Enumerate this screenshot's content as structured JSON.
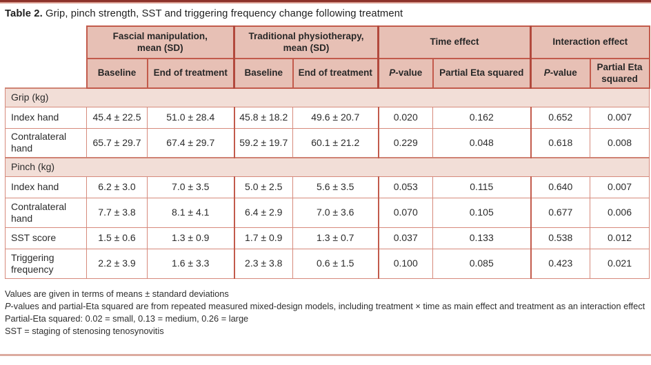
{
  "title": {
    "prefix": "Table 2.",
    "text": " Grip, pinch strength, SST and triggering frequency change following treatment"
  },
  "header": {
    "groups": [
      {
        "line1": "Fascial manipulation,",
        "line2": "mean (SD)"
      },
      {
        "line1": "Traditional physiotherapy,",
        "line2": "mean (SD)"
      },
      {
        "label": "Time effect"
      },
      {
        "label": "Interaction effect"
      }
    ],
    "sub": {
      "baseline": "Baseline",
      "end_of_treatment": "End of treatment",
      "p_italic": "P",
      "p_rest": "-value",
      "partial_eta": "Partial Eta squared"
    }
  },
  "sections": [
    {
      "name": "Grip (kg)",
      "rows": [
        {
          "label": "Index hand",
          "values": [
            "45.4 ± 22.5",
            "51.0 ± 28.4",
            "45.8 ± 18.2",
            "49.6 ± 20.7",
            "0.020",
            "0.162",
            "0.652",
            "0.007"
          ]
        },
        {
          "label": "Contralateral hand",
          "values": [
            "65.7 ± 29.7",
            "67.4 ± 29.7",
            "59.2 ± 19.7",
            "60.1 ± 21.2",
            "0.229",
            "0.048",
            "0.618",
            "0.008"
          ]
        }
      ]
    },
    {
      "name": "Pinch (kg)",
      "rows": [
        {
          "label": "Index hand",
          "values": [
            "6.2 ± 3.0",
            "7.0 ± 3.5",
            "5.0 ± 2.5",
            "5.6 ± 3.5",
            "0.053",
            "0.115",
            "0.640",
            "0.007"
          ]
        },
        {
          "label": "Contralateral hand",
          "values": [
            "7.7 ± 3.8",
            "8.1 ± 4.1",
            "6.4 ± 2.9",
            "7.0 ± 3.6",
            "0.070",
            "0.105",
            "0.677",
            "0.006"
          ]
        },
        {
          "label": "SST score",
          "values": [
            "1.5 ± 0.6",
            "1.3 ± 0.9",
            "1.7 ± 0.9",
            "1.3 ± 0.7",
            "0.037",
            "0.133",
            "0.538",
            "0.012"
          ]
        },
        {
          "label": "Triggering frequency",
          "values": [
            "2.2 ± 3.9",
            "1.6 ± 3.3",
            "2.3 ± 3.8",
            "0.6 ± 1.5",
            "0.100",
            "0.085",
            "0.423",
            "0.021"
          ]
        }
      ]
    }
  ],
  "footnotes": [
    {
      "text": "Values are given in terms of means ± standard deviations"
    },
    {
      "italic_prefix": "P",
      "text": "-values and partial-Eta squared are from repeated measured mixed-design models, including treatment × time as main effect and treatment as an interaction effect"
    },
    {
      "text": "Partial-Eta squared: 0.02 = small, 0.13 = medium, 0.26 = large"
    },
    {
      "text": "SST = staging of stenosing tenosynovitis"
    }
  ],
  "colors": {
    "header_fill": "#e7c0b5",
    "section_band_fill": "#f2ded7",
    "grid_line": "#d6897b",
    "group_divider": "#c25a4b",
    "top_rule_dark": "#8c322a",
    "top_rule_light": "#d89a8e",
    "bottom_rule": "#dcab9f",
    "text": "#2b2b2b"
  }
}
